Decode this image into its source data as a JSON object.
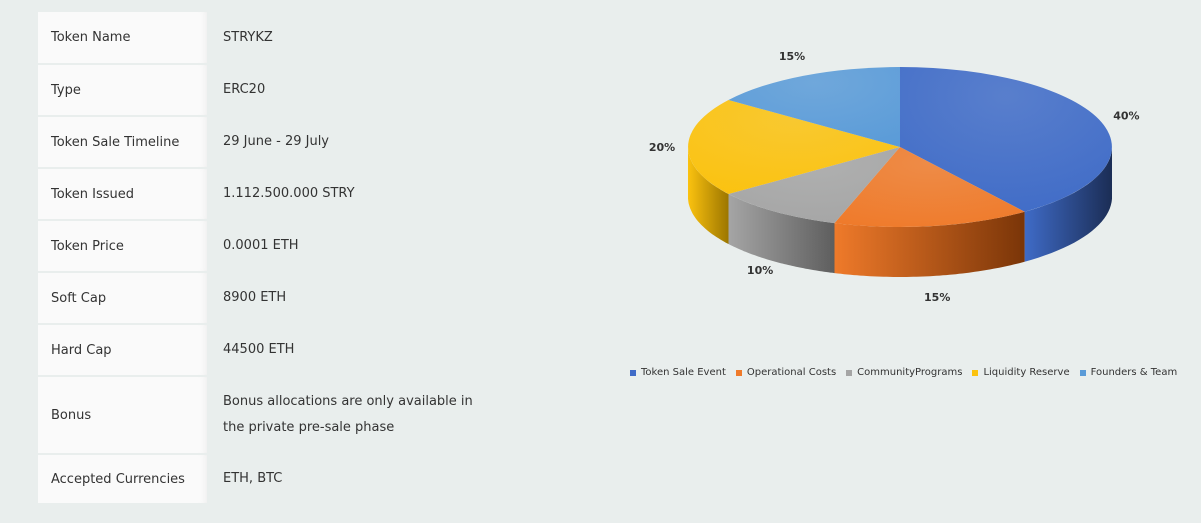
{
  "token_details": [
    {
      "label": "Token Name",
      "value": "STRYKZ"
    },
    {
      "label": "Type",
      "value": "ERC20"
    },
    {
      "label": "Token Sale Timeline",
      "value": "29 June - 29 July"
    },
    {
      "label": "Token Issued",
      "value": "1.112.500.000 STRY"
    },
    {
      "label": "Token Price",
      "value": "0.0001 ETH"
    },
    {
      "label": "Soft Cap",
      "value": "8900 ETH"
    },
    {
      "label": "Hard Cap",
      "value": "44500 ETH"
    },
    {
      "label": "Bonus",
      "value": "Bonus allocations are only available in the private pre-sale phase"
    },
    {
      "label": "Accepted Currencies",
      "value": "ETH, BTC"
    }
  ],
  "chart_data": {
    "type": "pie",
    "title": "",
    "slices": [
      {
        "name": "Token Sale Event",
        "value": 40,
        "label": "40%",
        "color": "#3f6bc7",
        "dark": "#1b2d55"
      },
      {
        "name": "Operational Costs",
        "value": 15,
        "label": "15%",
        "color": "#ef7a2a",
        "dark": "#7a3508"
      },
      {
        "name": "CommunityPrograms",
        "value": 10,
        "label": "10%",
        "color": "#a5a5a5",
        "dark": "#5e5e5e"
      },
      {
        "name": "Liquidity Reserve",
        "value": 20,
        "label": "20%",
        "color": "#fbc20f",
        "dark": "#9c7600"
      },
      {
        "name": "Founders & Team",
        "value": 15,
        "label": "15%",
        "color": "#5a9bd8",
        "dark": "#2c5a88"
      }
    ],
    "legend_position": "bottom"
  }
}
